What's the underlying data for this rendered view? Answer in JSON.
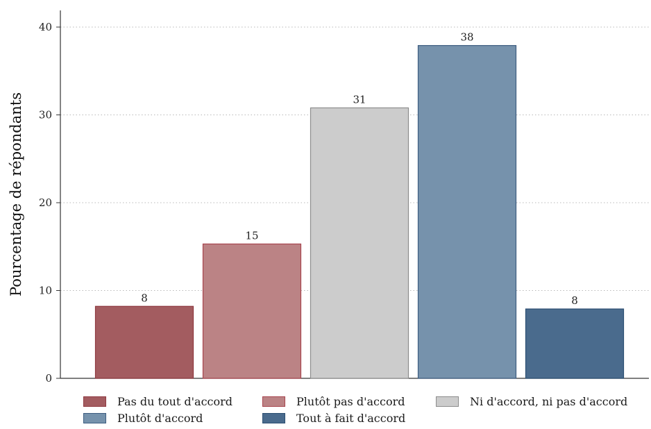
{
  "chart_data": {
    "type": "bar",
    "title": "",
    "xlabel": "",
    "ylabel": "Pourcentage de répondants",
    "ylim": [
      0,
      42
    ],
    "yticks": [
      0,
      10,
      20,
      30,
      40
    ],
    "grid": true,
    "legend_position": "bottom",
    "categories": [
      "Pas du tout d'accord",
      "Plutôt pas d'accord",
      "Ni d'accord, ni pas d'accord",
      "Plutôt d'accord",
      "Tout à fait d'accord"
    ],
    "values": [
      8.2,
      15.3,
      30.8,
      37.9,
      7.9
    ],
    "data_labels": [
      "8",
      "15",
      "31",
      "38",
      "8"
    ],
    "colors": [
      "#a35c60",
      "#bb8385",
      "#cccccc",
      "#7692ac",
      "#4a6b8d"
    ],
    "edge_colors": [
      "#8f3a41",
      "#a8454e",
      "#8c8c8c",
      "#3d5d80",
      "#2c4f72"
    ]
  }
}
